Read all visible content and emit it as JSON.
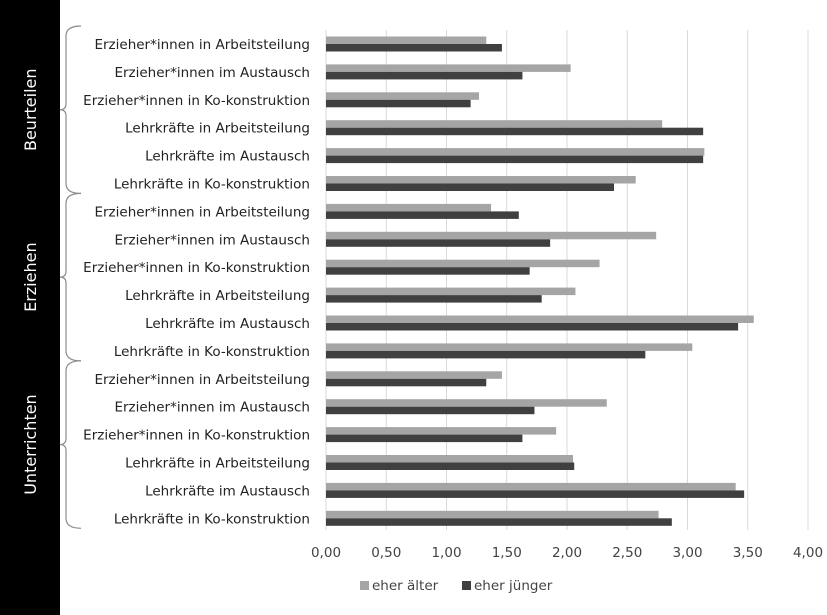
{
  "chart_data": {
    "type": "bar",
    "orientation": "horizontal",
    "groups": [
      {
        "label": "Beurteilen",
        "categories": [
          "Erzieher*innen in Arbeitsteilung",
          "Erzieher*innen im Austausch",
          "Erzieher*innen in Ko-konstruktion",
          "Lehrkräfte in Arbeitsteilung",
          "Lehrkräfte im Austausch",
          "Lehrkräfte in Ko-konstruktion"
        ],
        "series": [
          {
            "name": "eher älter",
            "values": [
              1.33,
              2.03,
              1.27,
              2.79,
              3.14,
              2.57
            ]
          },
          {
            "name": "eher jünger",
            "values": [
              1.46,
              1.63,
              1.2,
              3.13,
              3.13,
              2.39
            ]
          }
        ]
      },
      {
        "label": "Erziehen",
        "categories": [
          "Erzieher*innen in Arbeitsteilung",
          "Erzieher*innen im Austausch",
          "Erzieher*innen in Ko-konstruktion",
          "Lehrkräfte in Arbeitsteilung",
          "Lehrkräfte im Austausch",
          "Lehrkräfte in Ko-konstruktion"
        ],
        "series": [
          {
            "name": "eher älter",
            "values": [
              1.37,
              2.74,
              2.27,
              2.07,
              3.55,
              3.04
            ]
          },
          {
            "name": "eher jünger",
            "values": [
              1.6,
              1.86,
              1.69,
              1.79,
              3.42,
              2.65
            ]
          }
        ]
      },
      {
        "label": "Unterrichten",
        "categories": [
          "Erzieher*innen in Arbeitsteilung",
          "Erzieher*innen im Austausch",
          "Erzieher*innen in Ko-konstruktion",
          "Lehrkräfte in Arbeitsteilung",
          "Lehrkräfte im Austausch",
          "Lehrkräfte in Ko-konstruktion"
        ],
        "series": [
          {
            "name": "eher älter",
            "values": [
              1.46,
              2.33,
              1.91,
              2.05,
              3.4,
              2.76
            ]
          },
          {
            "name": "eher jünger",
            "values": [
              1.33,
              1.73,
              1.63,
              2.06,
              3.47,
              2.87
            ]
          }
        ]
      }
    ],
    "xlim": [
      0,
      4
    ],
    "x_ticks": [
      "0,00",
      "0,50",
      "1,00",
      "1,50",
      "2,00",
      "2,50",
      "3,00",
      "3,50",
      "4,00"
    ],
    "title": "",
    "xlabel": "",
    "ylabel": "",
    "grid": "vertical",
    "legend": [
      "eher älter",
      "eher jünger"
    ],
    "legend_position": "bottom",
    "colors": {
      "eher älter": "#a5a5a5",
      "eher jünger": "#404040"
    }
  }
}
